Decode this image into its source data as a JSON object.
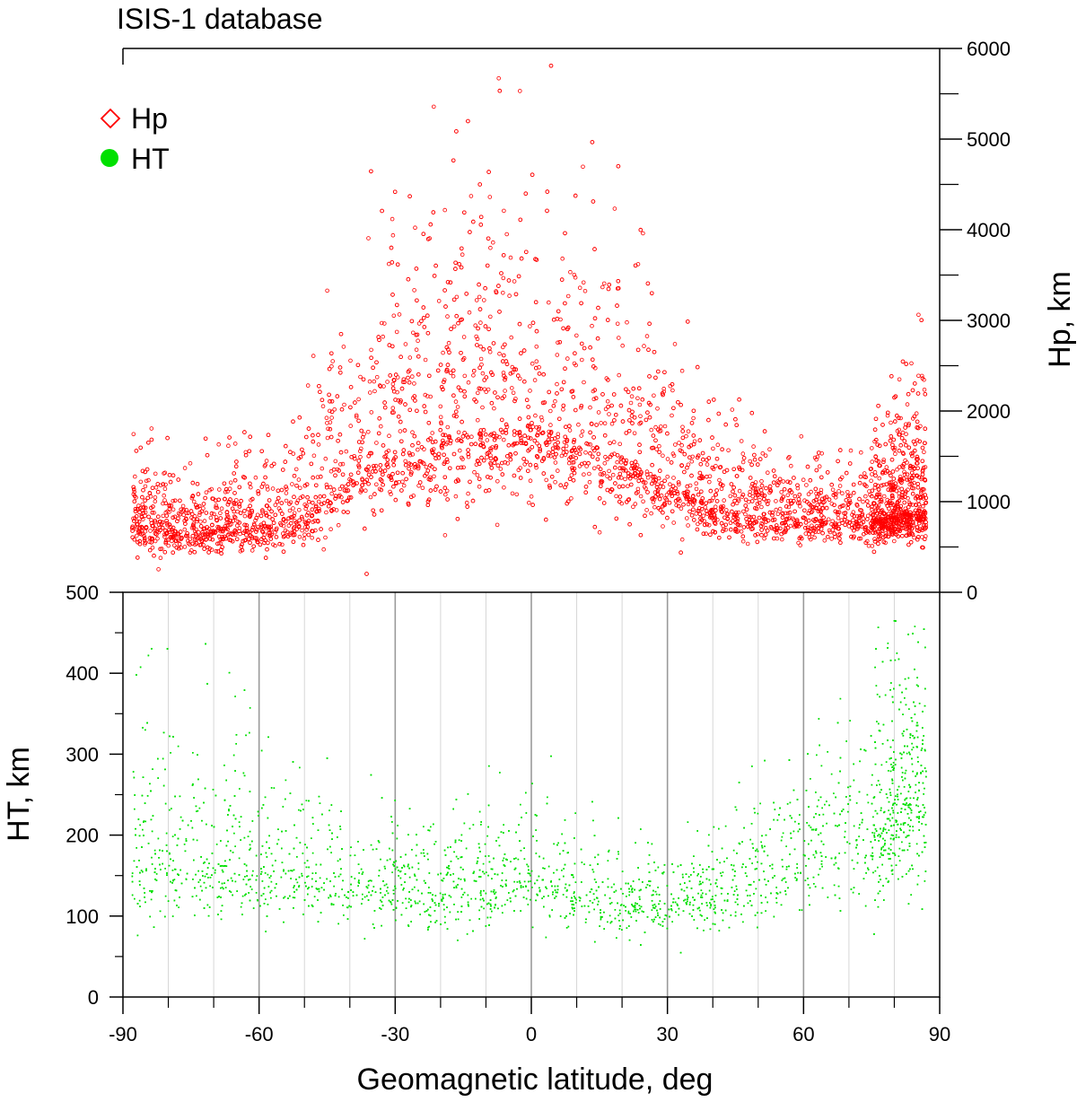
{
  "figure": {
    "title": "ISIS-1 database"
  },
  "legend": {
    "placement": "top-left",
    "items": [
      {
        "label": "Hp",
        "marker": "open-diamond",
        "color": "#ff0000"
      },
      {
        "label": "HT",
        "marker": "filled-circle",
        "color": "#00e000"
      }
    ]
  },
  "chart_data": [
    {
      "type": "scatter",
      "panel": "top",
      "series": [
        {
          "name": "Hp",
          "color": "#ff0000",
          "marker": "open-circle"
        }
      ],
      "xlabel": "",
      "ylabel": "Hp, km",
      "y_axis_side": "right",
      "xlim": [
        -90,
        90
      ],
      "ylim": [
        0,
        6000
      ],
      "yticks": [
        0,
        1000,
        2000,
        3000,
        4000,
        5000,
        6000
      ],
      "yticks_minor": [
        500,
        1500,
        2500,
        3500,
        4500,
        5500
      ],
      "grid": false,
      "density_profile": {
        "note": "approximate point cloud: median height by latitude band",
        "latitude": [
          -88,
          -80,
          -70,
          -60,
          -50,
          -45,
          -40,
          -30,
          -20,
          -10,
          0,
          10,
          20,
          30,
          40,
          50,
          60,
          70,
          80,
          87
        ],
        "median_hp": [
          800,
          700,
          680,
          720,
          820,
          1150,
          1300,
          1500,
          1700,
          1850,
          1850,
          1700,
          1500,
          1200,
          950,
          850,
          800,
          800,
          850,
          900
        ],
        "upper_hp": [
          1500,
          1400,
          1300,
          1500,
          1800,
          2600,
          3200,
          3800,
          4200,
          4500,
          4500,
          4200,
          3800,
          2800,
          2000,
          1500,
          1400,
          1500,
          1900,
          2400
        ],
        "lower_hp": [
          450,
          400,
          400,
          420,
          450,
          600,
          800,
          900,
          950,
          1000,
          950,
          900,
          850,
          700,
          600,
          550,
          550,
          550,
          550,
          550
        ]
      }
    },
    {
      "type": "scatter",
      "panel": "bottom",
      "series": [
        {
          "name": "HT",
          "color": "#00e000",
          "marker": "dot"
        }
      ],
      "xlabel": "Geomagnetic latitude,  deg",
      "ylabel": "HT, km",
      "y_axis_side": "left",
      "xlim": [
        -90,
        90
      ],
      "xticks": [
        -90,
        -60,
        -30,
        0,
        30,
        60,
        90
      ],
      "xticks_minor": [
        -80,
        -70,
        -50,
        -40,
        -20,
        -10,
        10,
        20,
        40,
        50,
        70,
        80
      ],
      "ylim": [
        0,
        500
      ],
      "yticks": [
        0,
        100,
        200,
        300,
        400,
        500
      ],
      "yticks_minor": [
        50,
        150,
        250,
        350,
        450
      ],
      "grid": "vertical",
      "density_profile": {
        "note": "approximate point cloud: median height by latitude band",
        "latitude": [
          -88,
          -80,
          -70,
          -60,
          -50,
          -40,
          -30,
          -20,
          -10,
          0,
          10,
          20,
          30,
          40,
          50,
          60,
          70,
          80,
          87
        ],
        "median_ht": [
          170,
          165,
          160,
          155,
          150,
          140,
          135,
          125,
          135,
          155,
          130,
          115,
          115,
          130,
          150,
          170,
          200,
          230,
          260
        ],
        "upper_ht": [
          380,
          350,
          330,
          300,
          260,
          230,
          220,
          210,
          230,
          260,
          220,
          190,
          180,
          200,
          240,
          300,
          360,
          420,
          460
        ],
        "lower_ht": [
          90,
          90,
          90,
          90,
          90,
          85,
          85,
          80,
          80,
          85,
          80,
          75,
          75,
          80,
          85,
          95,
          110,
          120,
          130
        ]
      }
    }
  ]
}
